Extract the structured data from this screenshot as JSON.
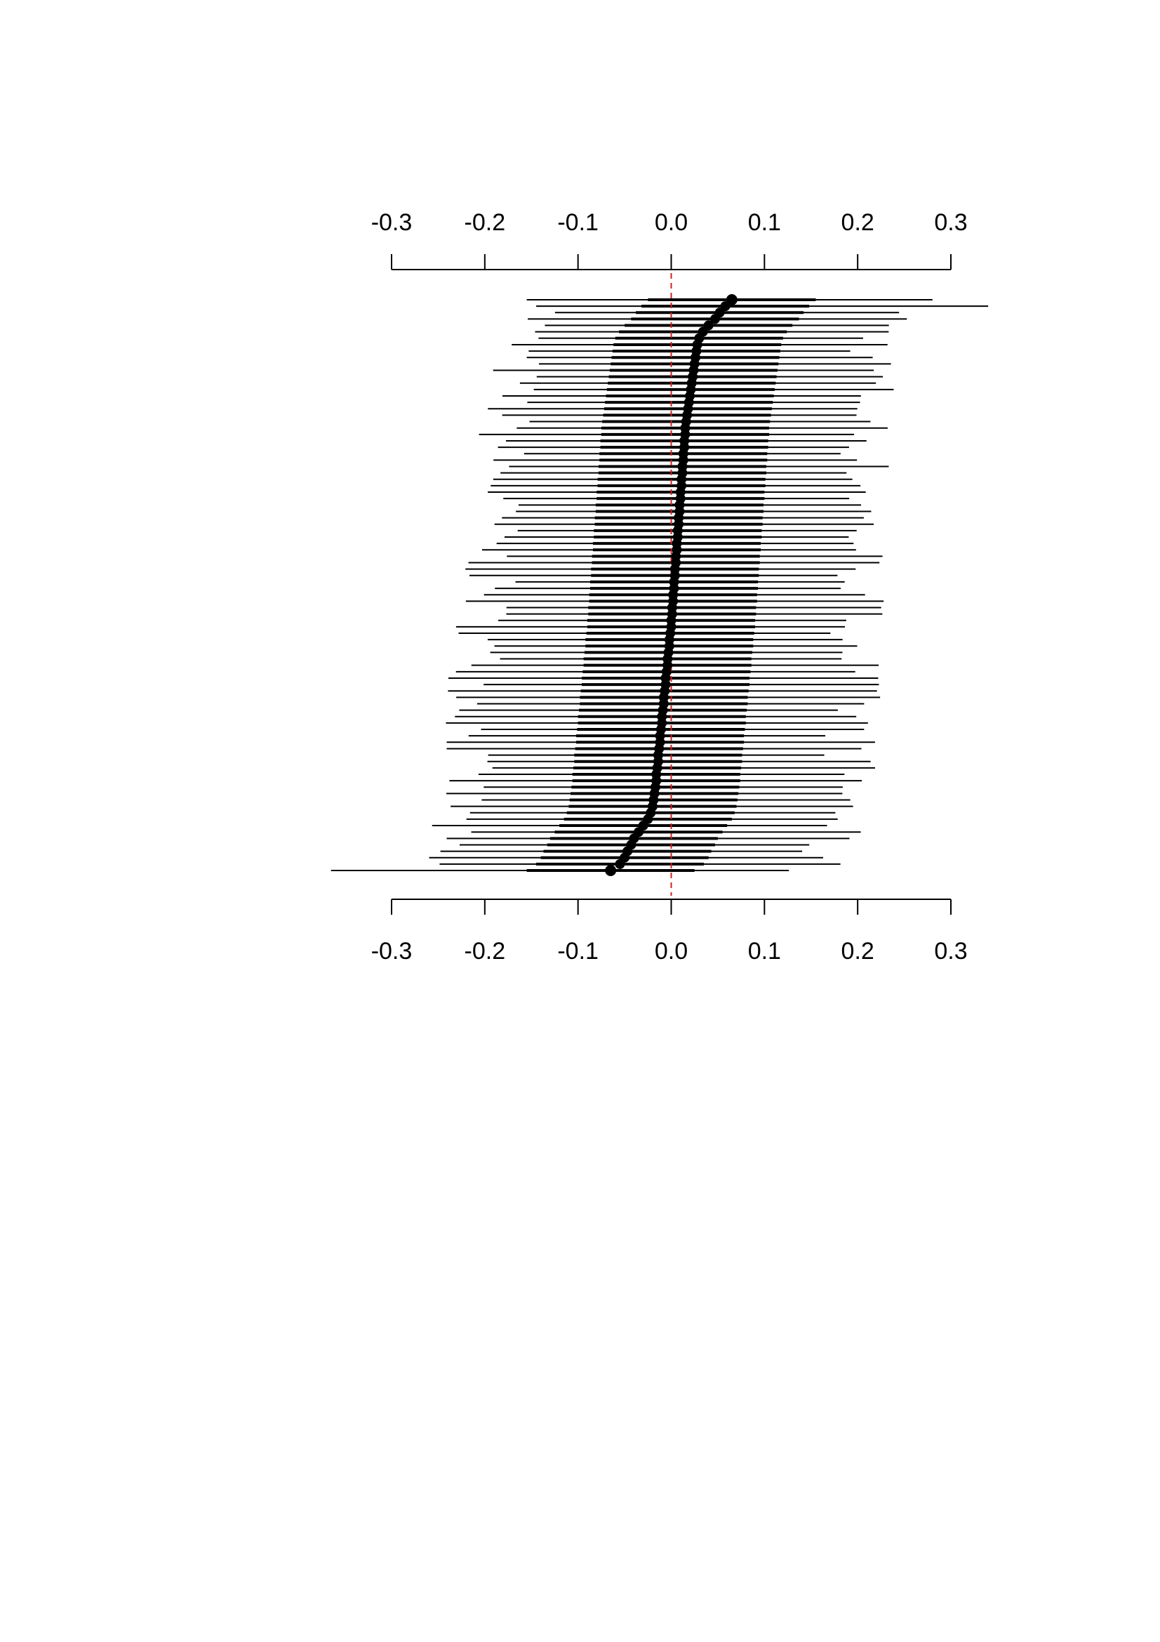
{
  "chart_data": {
    "type": "forest",
    "title": "",
    "xlabel": "",
    "ylabel": "",
    "xlim": [
      -0.3,
      0.3
    ],
    "ticks": [
      -0.3,
      -0.2,
      -0.1,
      0.0,
      0.1,
      0.2,
      0.3
    ],
    "tick_labels": [
      "-0.3",
      "-0.2",
      "-0.1",
      "0.0",
      "0.1",
      "0.2",
      "0.3"
    ],
    "axes": [
      "top",
      "bottom"
    ],
    "reference_line": {
      "x": 0.0,
      "color": "#cc2222",
      "style": "dashed"
    },
    "n_items": 90,
    "sort": "descending by estimate, top to bottom",
    "point_estimates": [
      0.065,
      0.058,
      0.052,
      0.047,
      0.04,
      0.034,
      0.03,
      0.028,
      0.027,
      0.026,
      0.025,
      0.024,
      0.023,
      0.022,
      0.021,
      0.02,
      0.019,
      0.018,
      0.017,
      0.016,
      0.015,
      0.015,
      0.014,
      0.014,
      0.013,
      0.013,
      0.012,
      0.012,
      0.011,
      0.011,
      0.01,
      0.01,
      0.009,
      0.009,
      0.008,
      0.008,
      0.007,
      0.007,
      0.006,
      0.006,
      0.005,
      0.005,
      0.004,
      0.004,
      0.003,
      0.003,
      0.002,
      0.002,
      0.001,
      0.001,
      0.0,
      0.0,
      -0.001,
      -0.002,
      -0.002,
      -0.003,
      -0.004,
      -0.004,
      -0.005,
      -0.006,
      -0.006,
      -0.007,
      -0.008,
      -0.008,
      -0.009,
      -0.01,
      -0.01,
      -0.011,
      -0.012,
      -0.012,
      -0.013,
      -0.014,
      -0.014,
      -0.015,
      -0.016,
      -0.016,
      -0.017,
      -0.018,
      -0.019,
      -0.02,
      -0.022,
      -0.025,
      -0.03,
      -0.035,
      -0.04,
      -0.043,
      -0.047,
      -0.05,
      -0.055,
      -0.065
    ],
    "intervals": {
      "outer_halfwidth_top": 0.19,
      "outer_halfwidth_bottom": 0.21,
      "inner_halfwidth": 0.09,
      "extremes": {
        "max_upper": 0.34,
        "min_lower": -0.365
      }
    },
    "colors": {
      "points": "#000000",
      "intervals": "#000000",
      "reference": "#cc2222"
    }
  }
}
